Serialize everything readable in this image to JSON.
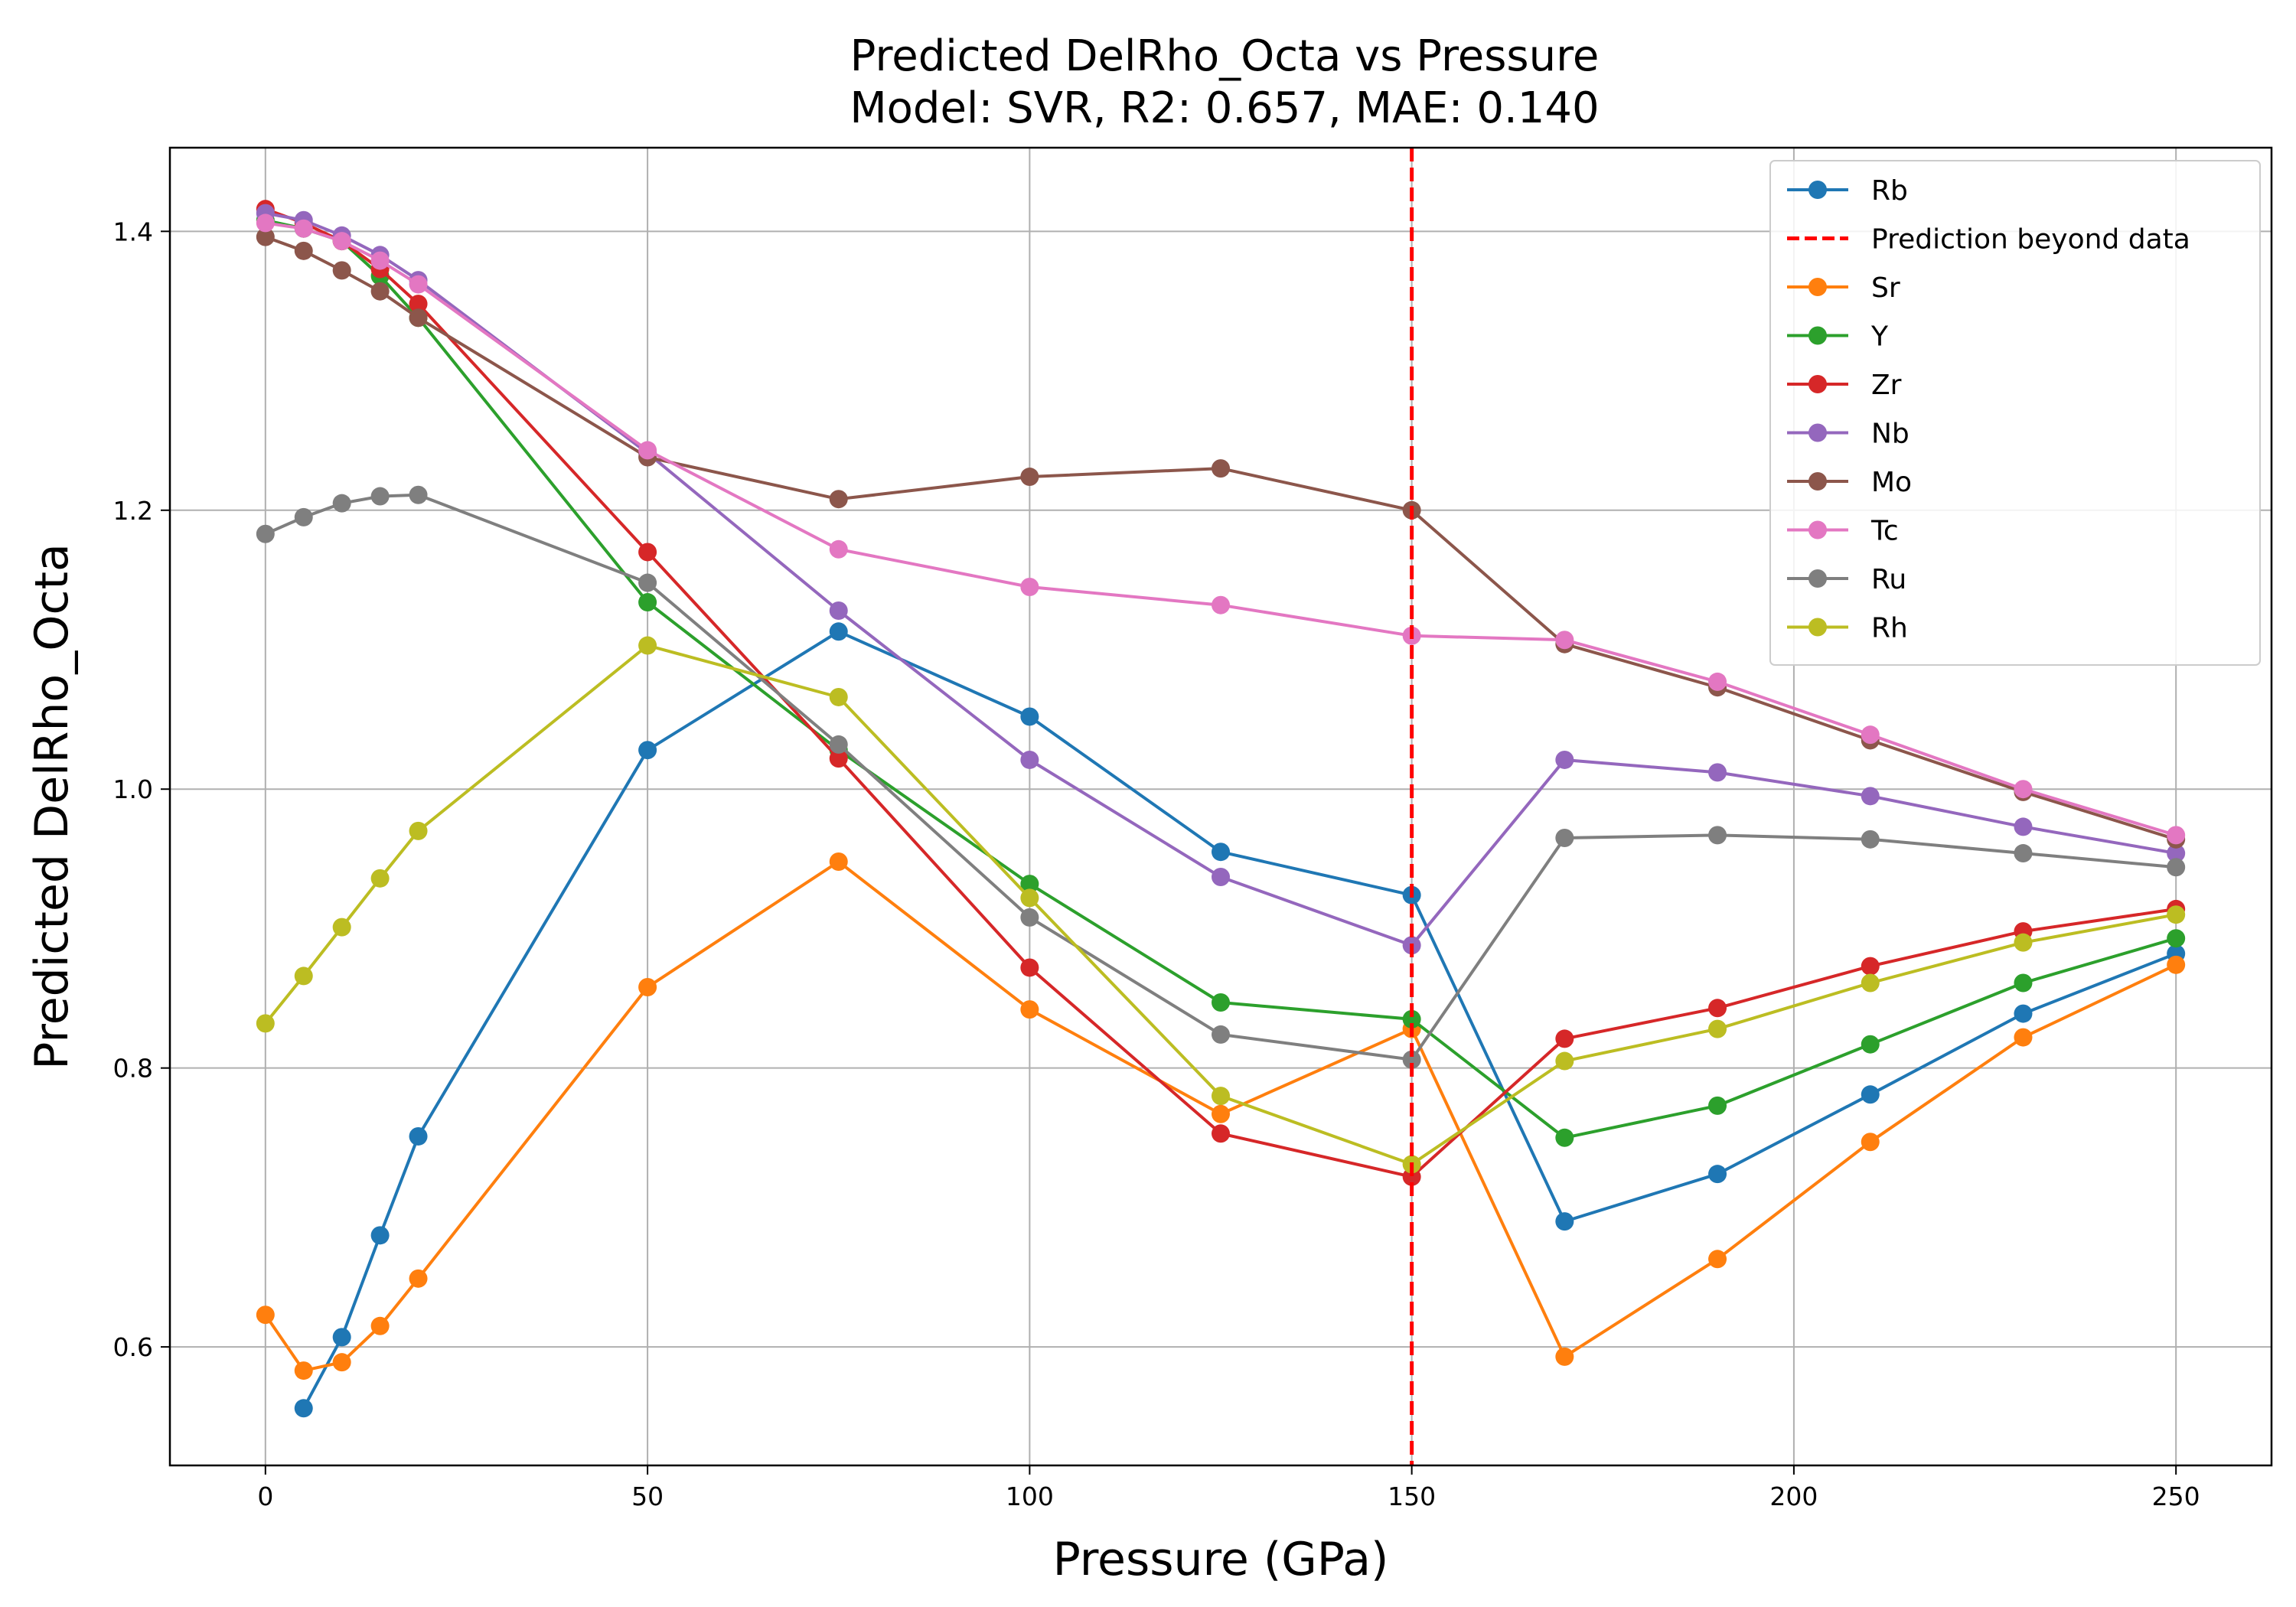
{
  "chart_data": {
    "type": "line",
    "title": "Predicted DelRho_Octa vs Pressure",
    "subtitle": "Model: SVR, R2: 0.657, MAE: 0.140",
    "xlabel": "Pressure (GPa)",
    "ylabel": "Predicted DelRho_Octa",
    "xlim": [
      -12.5,
      262.5
    ],
    "ylim": [
      0.515,
      1.46
    ],
    "xticks": [
      0,
      50,
      100,
      150,
      200,
      250
    ],
    "yticks": [
      0.6,
      0.8,
      1.0,
      1.2,
      1.4
    ],
    "xtick_labels": [
      "0",
      "50",
      "100",
      "150",
      "200",
      "250"
    ],
    "ytick_labels": [
      "0.6",
      "0.8",
      "1.0",
      "1.2",
      "1.4"
    ],
    "grid": true,
    "legend_position": "top-right",
    "vline": {
      "x": 150,
      "label": "Prediction beyond data",
      "color": "#ff0000",
      "style": "dashed"
    },
    "series": [
      {
        "name": "Rb",
        "color": "#1f77b4",
        "x": [
          5,
          10,
          15,
          20,
          50,
          75,
          100,
          125,
          150,
          170,
          190,
          210,
          230,
          250
        ],
        "y": [
          0.556,
          0.607,
          0.68,
          0.751,
          1.028,
          1.113,
          1.052,
          0.955,
          0.924,
          0.69,
          0.724,
          0.781,
          0.839,
          0.882
        ]
      },
      {
        "name": "Sr",
        "color": "#ff7f0e",
        "x": [
          0,
          5,
          10,
          15,
          20,
          50,
          75,
          100,
          125,
          150,
          170,
          190,
          210,
          230,
          250
        ],
        "y": [
          0.623,
          0.583,
          0.589,
          0.615,
          0.649,
          0.858,
          0.948,
          0.842,
          0.767,
          0.828,
          0.593,
          0.663,
          0.747,
          0.822,
          0.874
        ]
      },
      {
        "name": "Y",
        "color": "#2ca02c",
        "x": [
          0,
          5,
          10,
          15,
          20,
          50,
          75,
          100,
          125,
          150,
          170,
          190,
          210,
          230,
          250
        ],
        "y": [
          1.408,
          1.402,
          1.393,
          1.368,
          1.338,
          1.134,
          1.028,
          0.932,
          0.847,
          0.835,
          0.75,
          0.773,
          0.817,
          0.861,
          0.893
        ]
      },
      {
        "name": "Zr",
        "color": "#d62728",
        "x": [
          0,
          5,
          10,
          15,
          20,
          50,
          75,
          100,
          125,
          150,
          170,
          190,
          210,
          230,
          250
        ],
        "y": [
          1.416,
          1.406,
          1.393,
          1.373,
          1.348,
          1.17,
          1.022,
          0.872,
          0.753,
          0.722,
          0.821,
          0.843,
          0.873,
          0.898,
          0.914
        ]
      },
      {
        "name": "Nb",
        "color": "#9467bd",
        "x": [
          0,
          5,
          10,
          15,
          20,
          50,
          75,
          100,
          125,
          150,
          170,
          190,
          210,
          230,
          250
        ],
        "y": [
          1.413,
          1.408,
          1.397,
          1.383,
          1.365,
          1.241,
          1.128,
          1.021,
          0.937,
          0.888,
          1.021,
          1.012,
          0.995,
          0.973,
          0.954
        ]
      },
      {
        "name": "Mo",
        "color": "#8c564b",
        "x": [
          0,
          5,
          10,
          15,
          20,
          50,
          75,
          100,
          125,
          150,
          170,
          190,
          210,
          230,
          250
        ],
        "y": [
          1.396,
          1.386,
          1.372,
          1.357,
          1.338,
          1.238,
          1.208,
          1.224,
          1.23,
          1.2,
          1.104,
          1.073,
          1.035,
          0.998,
          0.964
        ]
      },
      {
        "name": "Tc",
        "color": "#e377c2",
        "x": [
          0,
          5,
          10,
          15,
          20,
          50,
          75,
          100,
          125,
          150,
          170,
          190,
          210,
          230,
          250
        ],
        "y": [
          1.406,
          1.402,
          1.393,
          1.379,
          1.362,
          1.243,
          1.172,
          1.145,
          1.132,
          1.11,
          1.107,
          1.077,
          1.039,
          1.0,
          0.967
        ]
      },
      {
        "name": "Ru",
        "color": "#7f7f7f",
        "x": [
          0,
          5,
          10,
          15,
          20,
          50,
          75,
          100,
          125,
          150,
          170,
          190,
          210,
          230,
          250
        ],
        "y": [
          1.183,
          1.195,
          1.205,
          1.21,
          1.211,
          1.148,
          1.032,
          0.908,
          0.824,
          0.806,
          0.965,
          0.967,
          0.964,
          0.954,
          0.944
        ]
      },
      {
        "name": "Rh",
        "color": "#bcbd22",
        "x": [
          0,
          5,
          10,
          15,
          20,
          50,
          75,
          100,
          125,
          150,
          170,
          190,
          210,
          230,
          250
        ],
        "y": [
          0.832,
          0.866,
          0.901,
          0.936,
          0.97,
          1.103,
          1.066,
          0.922,
          0.78,
          0.731,
          0.805,
          0.828,
          0.861,
          0.89,
          0.91
        ]
      }
    ]
  }
}
